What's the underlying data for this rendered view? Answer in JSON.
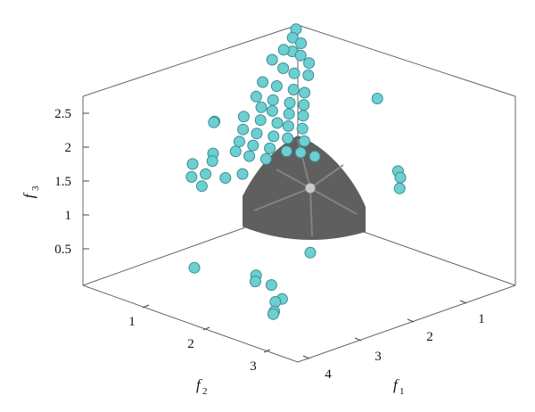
{
  "chart_data": {
    "type": "scatter",
    "projection": "3d",
    "title": "",
    "axes": {
      "f1": {
        "label": "f",
        "subscript": "1",
        "ticks": [
          "1",
          "2",
          "3",
          "4"
        ]
      },
      "f2": {
        "label": "f",
        "subscript": "2",
        "ticks": [
          "1",
          "2",
          "3"
        ]
      },
      "f3": {
        "label": "f",
        "subscript": "3",
        "ticks": [
          "0.5",
          "1",
          "1.5",
          "2",
          "2.5"
        ]
      }
    },
    "surface": {
      "shape": "spherical-octant",
      "color": "#5f5f5f"
    },
    "reference_point": {
      "color": "#c8c8c8"
    },
    "marker_color": "#6ccfd2",
    "marker_edge": "#3d8d90",
    "series": [
      {
        "points": [
          [
            0.25,
            0.25,
            2.8
          ],
          [
            0.3,
            0.35,
            2.72
          ],
          [
            0.35,
            0.4,
            2.55
          ],
          [
            0.45,
            0.35,
            2.5
          ],
          [
            0.2,
            0.6,
            2.45
          ],
          [
            0.55,
            0.3,
            2.4
          ],
          [
            0.35,
            0.55,
            2.35
          ],
          [
            0.5,
            0.5,
            2.3
          ],
          [
            0.65,
            0.4,
            2.28
          ],
          [
            0.25,
            0.8,
            2.2
          ],
          [
            0.4,
            0.7,
            2.15
          ],
          [
            0.6,
            0.6,
            2.12
          ],
          [
            0.75,
            0.55,
            2.1
          ],
          [
            0.3,
            0.95,
            2.05
          ],
          [
            0.5,
            0.85,
            2.02
          ],
          [
            0.7,
            0.75,
            2.0
          ],
          [
            0.85,
            0.65,
            1.98
          ],
          [
            0.45,
            1.0,
            1.95
          ],
          [
            0.6,
            0.95,
            1.92
          ],
          [
            0.8,
            0.85,
            1.9
          ],
          [
            0.95,
            0.75,
            1.88
          ],
          [
            0.35,
            1.2,
            1.85
          ],
          [
            0.55,
            1.1,
            1.82
          ],
          [
            0.75,
            1.0,
            1.8
          ],
          [
            0.9,
            0.95,
            1.78
          ],
          [
            1.05,
            0.85,
            1.75
          ],
          [
            0.45,
            1.3,
            1.72
          ],
          [
            0.65,
            1.25,
            1.7
          ],
          [
            0.85,
            1.15,
            1.68
          ],
          [
            1.0,
            1.05,
            1.66
          ],
          [
            1.2,
            0.95,
            1.64
          ],
          [
            0.55,
            1.45,
            1.62
          ],
          [
            0.75,
            1.4,
            1.6
          ],
          [
            0.95,
            1.3,
            1.58
          ],
          [
            1.15,
            1.2,
            1.56
          ],
          [
            0.65,
            1.6,
            1.55
          ],
          [
            0.85,
            1.55,
            1.52
          ],
          [
            1.05,
            1.45,
            1.5
          ],
          [
            0.4,
            1.75,
            1.5
          ],
          [
            0.5,
            1.85,
            1.45
          ],
          [
            0.3,
            2.0,
            1.4
          ],
          [
            0.6,
            2.05,
            1.35
          ],
          [
            0.45,
            2.15,
            1.3
          ],
          [
            0.7,
            2.2,
            1.25
          ],
          [
            0.8,
            1.9,
            1.3
          ],
          [
            0.95,
            1.75,
            1.35
          ],
          [
            1.3,
            1.1,
            1.55
          ],
          [
            1.45,
            1.0,
            1.5
          ],
          [
            0.2,
            1.55,
            1.85
          ],
          [
            0.3,
            1.65,
            1.9
          ],
          [
            2.1,
            0.2,
            1.2
          ],
          [
            2.2,
            0.25,
            1.15
          ],
          [
            2.3,
            0.35,
            1.05
          ],
          [
            0.4,
            0.3,
            2.65
          ],
          [
            0.28,
            0.48,
            2.58
          ],
          [
            0.9,
            2.5,
            0.2
          ],
          [
            1.6,
            2.1,
            0.15
          ],
          [
            1.7,
            2.2,
            0.12
          ],
          [
            2.0,
            2.2,
            0.15
          ],
          [
            2.2,
            2.2,
            0.0
          ],
          [
            2.3,
            2.4,
            0.05
          ],
          [
            2.45,
            2.55,
            0.0
          ],
          [
            2.6,
            2.7,
            0.05
          ],
          [
            2.5,
            2.0,
            0.7
          ],
          [
            1.6,
            0.1,
            2.1
          ]
        ]
      }
    ]
  }
}
